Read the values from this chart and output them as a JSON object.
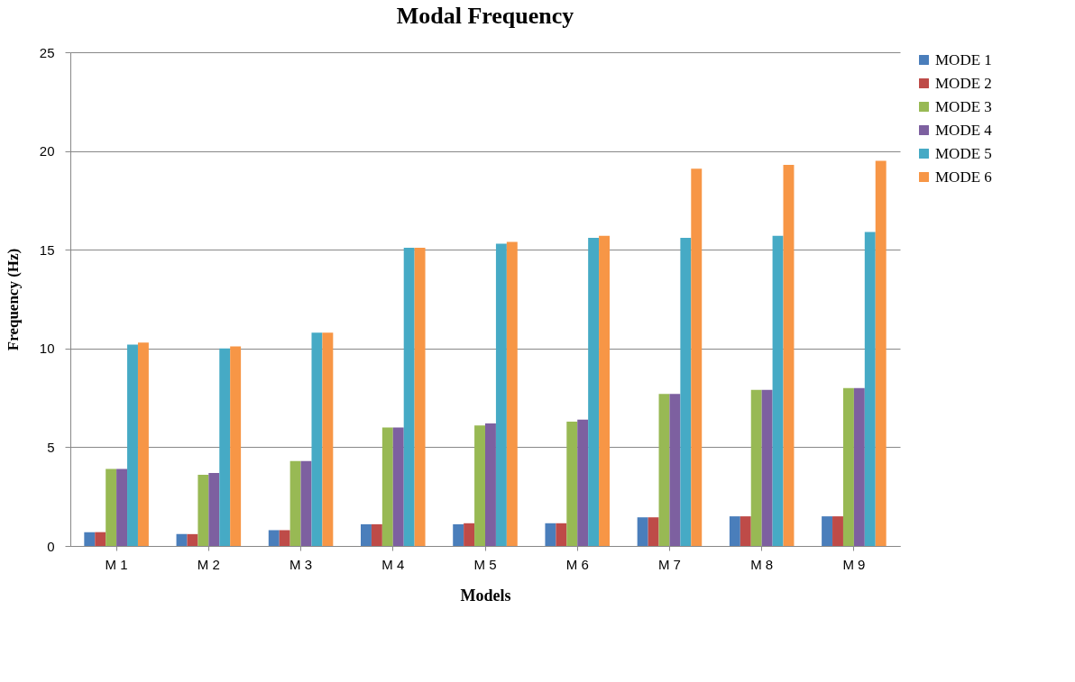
{
  "chart_data": {
    "type": "bar",
    "title": "Modal Frequency",
    "xlabel": "Models",
    "ylabel": "Frequency (Hz)",
    "categories": [
      "M 1",
      "M 2",
      "M 3",
      "M 4",
      "M 5",
      "M 6",
      "M 7",
      "M 8",
      "M 9"
    ],
    "series": [
      {
        "name": "MODE 1",
        "color": "#4a7ebb",
        "values": [
          0.7,
          0.6,
          0.8,
          1.1,
          1.1,
          1.15,
          1.45,
          1.5,
          1.5
        ]
      },
      {
        "name": "MODE 2",
        "color": "#be4b48",
        "values": [
          0.7,
          0.6,
          0.8,
          1.1,
          1.15,
          1.15,
          1.45,
          1.5,
          1.5
        ]
      },
      {
        "name": "MODE 3",
        "color": "#98b954",
        "values": [
          3.9,
          3.6,
          4.3,
          6.0,
          6.1,
          6.3,
          7.7,
          7.9,
          8.0
        ]
      },
      {
        "name": "MODE 4",
        "color": "#7d60a0",
        "values": [
          3.9,
          3.7,
          4.3,
          6.0,
          6.2,
          6.4,
          7.7,
          7.9,
          8.0
        ]
      },
      {
        "name": "MODE 5",
        "color": "#46aac5",
        "values": [
          10.2,
          10.0,
          10.8,
          15.1,
          15.3,
          15.6,
          15.6,
          15.7,
          15.9
        ]
      },
      {
        "name": "MODE 6",
        "color": "#f79646",
        "values": [
          10.3,
          10.1,
          10.8,
          15.1,
          15.4,
          15.7,
          19.1,
          19.3,
          19.5
        ]
      }
    ],
    "ylim": [
      0,
      25
    ],
    "yticks": [
      0,
      5,
      10,
      15,
      20,
      25
    ],
    "grid": "y",
    "legend": "right"
  }
}
